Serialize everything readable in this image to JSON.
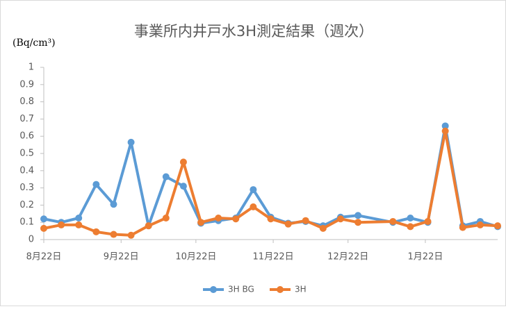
{
  "chart_data": {
    "type": "line",
    "title": "事業所内井戸水3H測定結果（週次）",
    "y_axis_label": "(Bq/cm³)",
    "x": [
      "8-22",
      "8-29",
      "9-05",
      "9-12",
      "9-19",
      "9-26",
      "10-03",
      "10-10",
      "10-17",
      "10-24",
      "10-31",
      "11-07",
      "11-14",
      "11-21",
      "11-28",
      "12-05",
      "12-12",
      "12-19",
      "12-26",
      "1-09",
      "1-16",
      "1-23",
      "1-30",
      "2-06",
      "2-13",
      "2-20"
    ],
    "xlim": [
      "8-22",
      "2-20"
    ],
    "xticks": [
      {
        "value": "8-22",
        "label": "8月22日"
      },
      {
        "value": "9-22",
        "label": "9月22日"
      },
      {
        "value": "10-22",
        "label": "10月22日"
      },
      {
        "value": "11-22",
        "label": "11月22日"
      },
      {
        "value": "12-22",
        "label": "12月22日"
      },
      {
        "value": "1-22",
        "label": "1月22日"
      }
    ],
    "ylim": [
      0,
      1
    ],
    "yticks": [
      0,
      0.1,
      0.2,
      0.3,
      0.4,
      0.5,
      0.6,
      0.7,
      0.8,
      0.9,
      1
    ],
    "legend": "bottom",
    "series": [
      {
        "name": "3H BG",
        "color": "#5b9bd5",
        "values": [
          0.12,
          0.1,
          0.125,
          0.32,
          0.205,
          0.565,
          0.08,
          0.365,
          0.31,
          0.095,
          0.11,
          0.125,
          0.29,
          0.13,
          0.095,
          0.105,
          0.08,
          0.13,
          0.14,
          0.1,
          0.125,
          0.1,
          0.66,
          0.08,
          0.105,
          0.075
        ]
      },
      {
        "name": "3H",
        "color": "#ed7d31",
        "values": [
          0.065,
          0.085,
          0.085,
          0.045,
          0.03,
          0.025,
          0.08,
          0.125,
          0.45,
          0.1,
          0.125,
          0.12,
          0.19,
          0.12,
          0.09,
          0.11,
          0.065,
          0.12,
          0.1,
          0.105,
          0.075,
          0.105,
          0.63,
          0.07,
          0.085,
          0.08
        ]
      }
    ]
  }
}
